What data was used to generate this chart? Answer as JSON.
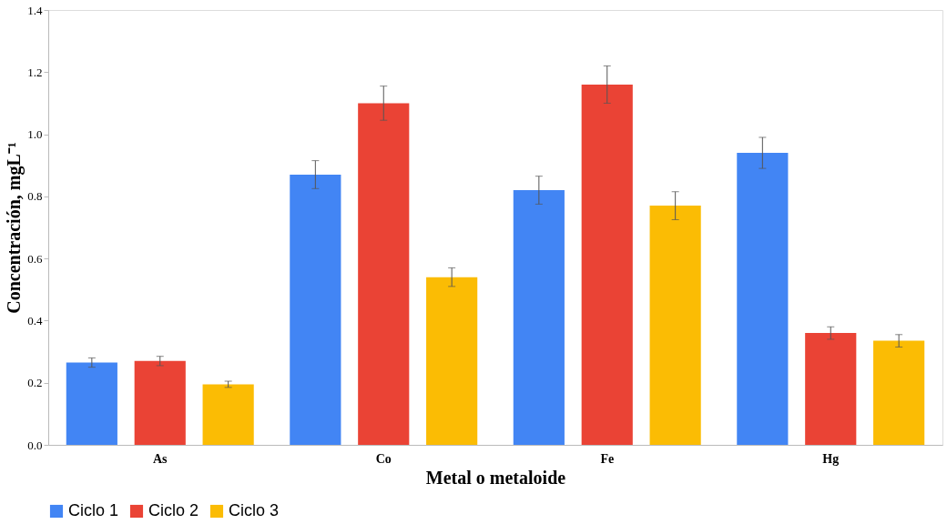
{
  "chart_data": {
    "type": "bar",
    "xlabel": "Metal o metaloide",
    "ylabel": "Concentración, mgL⁻¹",
    "categories": [
      "As",
      "Co",
      "Fe",
      "Hg"
    ],
    "series": [
      {
        "name": "Ciclo 1",
        "color": "#4285f4",
        "values": [
          0.265,
          0.87,
          0.82,
          0.94
        ],
        "errors": [
          0.015,
          0.045,
          0.045,
          0.05
        ]
      },
      {
        "name": "Ciclo 2",
        "color": "#ea4335",
        "values": [
          0.27,
          1.1,
          1.16,
          0.36
        ],
        "errors": [
          0.015,
          0.055,
          0.06,
          0.02
        ]
      },
      {
        "name": "Ciclo 3",
        "color": "#fbbc04",
        "values": [
          0.195,
          0.54,
          0.77,
          0.335
        ],
        "errors": [
          0.01,
          0.03,
          0.045,
          0.02
        ]
      }
    ],
    "ylim": [
      0,
      1.4
    ],
    "yticks": [
      {
        "value": 0,
        "label": "0.0"
      },
      0.2,
      0.4,
      0.6,
      0.8,
      {
        "value": 1,
        "label": "1.0"
      },
      1.2,
      1.4
    ],
    "grid": false,
    "legend": "bottom"
  }
}
